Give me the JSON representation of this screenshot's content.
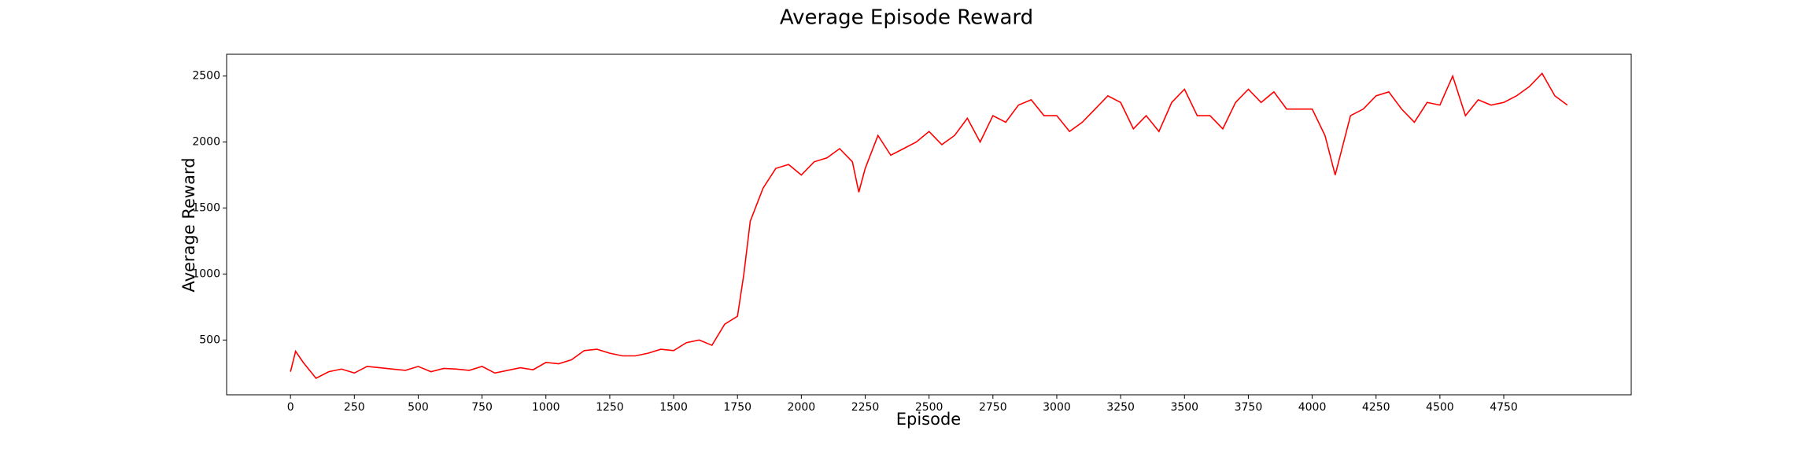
{
  "chart_data": {
    "type": "line",
    "title": "Average Episode Reward",
    "x_label": "Episode",
    "y_label": "Average Reward",
    "x": [
      0,
      20,
      50,
      100,
      150,
      200,
      250,
      300,
      350,
      400,
      450,
      500,
      550,
      600,
      650,
      700,
      750,
      800,
      850,
      900,
      950,
      1000,
      1050,
      1100,
      1150,
      1200,
      1250,
      1300,
      1350,
      1400,
      1450,
      1500,
      1550,
      1600,
      1650,
      1700,
      1750,
      1775,
      1800,
      1850,
      1900,
      1950,
      2000,
      2050,
      2100,
      2150,
      2200,
      2225,
      2250,
      2300,
      2350,
      2400,
      2450,
      2500,
      2550,
      2600,
      2650,
      2700,
      2750,
      2800,
      2850,
      2900,
      2950,
      3000,
      3050,
      3100,
      3150,
      3200,
      3250,
      3300,
      3350,
      3400,
      3450,
      3500,
      3550,
      3600,
      3650,
      3700,
      3750,
      3800,
      3850,
      3900,
      3950,
      4000,
      4050,
      4090,
      4150,
      4200,
      4250,
      4300,
      4350,
      4400,
      4450,
      4500,
      4550,
      4600,
      4650,
      4700,
      4750,
      4800,
      4850,
      4900,
      4950,
      4999
    ],
    "series": [
      {
        "name": "Average Reward",
        "color": "#ff0000",
        "values": [
          260,
          415,
          330,
          210,
          260,
          280,
          250,
          300,
          290,
          280,
          270,
          300,
          260,
          285,
          280,
          270,
          300,
          250,
          270,
          290,
          275,
          330,
          320,
          350,
          420,
          430,
          400,
          380,
          380,
          400,
          430,
          420,
          480,
          500,
          460,
          620,
          680,
          1000,
          1400,
          1650,
          1800,
          1830,
          1750,
          1850,
          1880,
          1950,
          1850,
          1620,
          1800,
          2050,
          1900,
          1950,
          2000,
          2080,
          1980,
          2050,
          2180,
          2000,
          2200,
          2150,
          2280,
          2320,
          2200,
          2200,
          2080,
          2150,
          2250,
          2350,
          2300,
          2100,
          2200,
          2080,
          2300,
          2400,
          2200,
          2200,
          2100,
          2300,
          2400,
          2300,
          2380,
          2250,
          2250,
          2250,
          2050,
          1750,
          2200,
          2250,
          2350,
          2380,
          2250,
          2150,
          2300,
          2280,
          2500,
          2200,
          2320,
          2280,
          2300,
          2350,
          2420,
          2520,
          2350,
          2280
        ]
      }
    ],
    "xlim": [
      -250,
      5249
    ],
    "ylim": [
      85,
      2665
    ],
    "xticks": [
      0,
      250,
      500,
      750,
      1000,
      1250,
      1500,
      1750,
      2000,
      2250,
      2500,
      2750,
      3000,
      3250,
      3500,
      3750,
      4000,
      4250,
      4500,
      4750
    ],
    "yticks": [
      500,
      1000,
      1500,
      2000,
      2500
    ],
    "grid": false
  }
}
